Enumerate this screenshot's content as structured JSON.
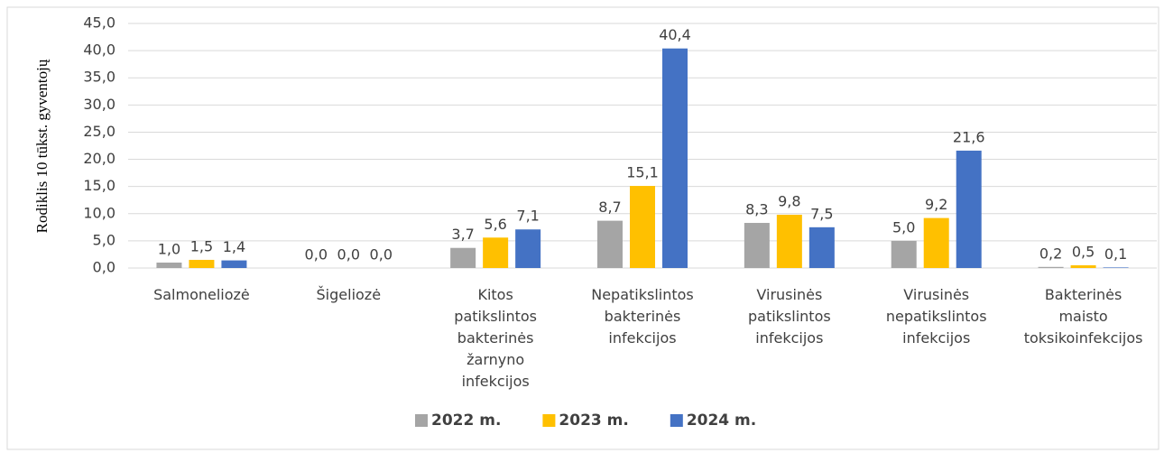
{
  "chart_data": {
    "type": "bar",
    "y_label": "Rodiklis 10 tūkst. gyventojų",
    "categories": [
      "Salmoneliozė",
      "Šigeliozė",
      "Kitos\npatikslintos\nbakterinės\nžarnyno\ninfekcijos",
      "Nepatikslintos\nbakterinės\ninfekcijos",
      "Virusinės\npatikslintos\ninfekcijos",
      "Virusinės\nnepatikslintos\ninfekcijos",
      "Bakterinės\nmaisto\ntoksikoinfekcijos"
    ],
    "series": [
      {
        "name": "2022 m.",
        "color": "#a5a5a5",
        "values": [
          1.0,
          0.0,
          3.7,
          8.7,
          8.3,
          5.0,
          0.2
        ],
        "value_labels": [
          "1,0",
          "0,0",
          "3,7",
          "8,7",
          "8,3",
          "5,0",
          "0,2"
        ]
      },
      {
        "name": "2023 m.",
        "color": "#ffc000",
        "values": [
          1.5,
          0.0,
          5.6,
          15.1,
          9.8,
          9.2,
          0.5
        ],
        "value_labels": [
          "1,5",
          "0,0",
          "5,6",
          "15,1",
          "9,8",
          "9,2",
          "0,5"
        ]
      },
      {
        "name": "2024 m.",
        "color": "#4472c4",
        "values": [
          1.4,
          0.0,
          7.1,
          40.4,
          7.5,
          21.6,
          0.1
        ],
        "value_labels": [
          "1,4",
          "0,0",
          "7,1",
          "40,4",
          "7,5",
          "21,6",
          "0,1"
        ]
      }
    ],
    "ylim": [
      0,
      45
    ],
    "yticks": [
      {
        "value": 0,
        "label": "0,0"
      },
      {
        "value": 5,
        "label": "5,0"
      },
      {
        "value": 10,
        "label": "10,0"
      },
      {
        "value": 15,
        "label": "15,0"
      },
      {
        "value": 20,
        "label": "20,0"
      },
      {
        "value": 25,
        "label": "25,0"
      },
      {
        "value": 30,
        "label": "30,0"
      },
      {
        "value": 35,
        "label": "35,0"
      },
      {
        "value": 40,
        "label": "40,0"
      },
      {
        "value": 45,
        "label": "45,0"
      }
    ],
    "grid": true,
    "legend": "bottom"
  }
}
